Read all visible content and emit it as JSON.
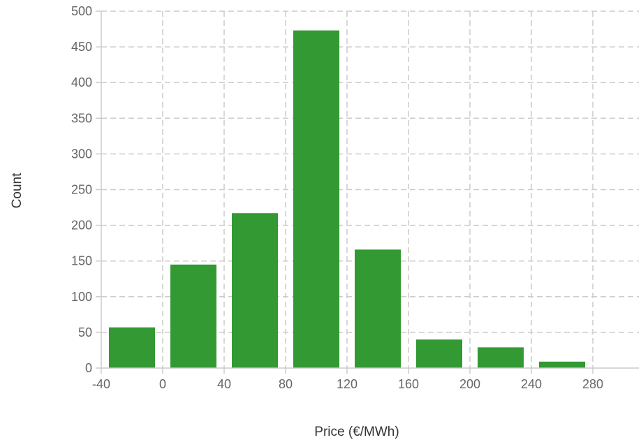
{
  "chart_data": {
    "type": "bar",
    "title": "",
    "xlabel": "Price (€/MWh)",
    "ylabel": "Count",
    "bins": [
      {
        "start": -40,
        "end": 0,
        "value": 57
      },
      {
        "start": 0,
        "end": 40,
        "value": 145
      },
      {
        "start": 40,
        "end": 80,
        "value": 217
      },
      {
        "start": 80,
        "end": 120,
        "value": 473
      },
      {
        "start": 120,
        "end": 160,
        "value": 166
      },
      {
        "start": 160,
        "end": 200,
        "value": 40
      },
      {
        "start": 200,
        "end": 240,
        "value": 29
      },
      {
        "start": 240,
        "end": 280,
        "value": 9
      }
    ],
    "xlim": [
      -40,
      310
    ],
    "ylim": [
      0,
      500
    ],
    "xticks": [
      "-40",
      "0",
      "40",
      "80",
      "120",
      "160",
      "200",
      "240",
      "280"
    ],
    "yticks": [
      "0",
      "50",
      "100",
      "150",
      "200",
      "250",
      "300",
      "350",
      "400",
      "450",
      "500"
    ],
    "grid": true,
    "bar_color": "#339933",
    "grid_color": "#cccccc",
    "tick_color": "#666666"
  }
}
